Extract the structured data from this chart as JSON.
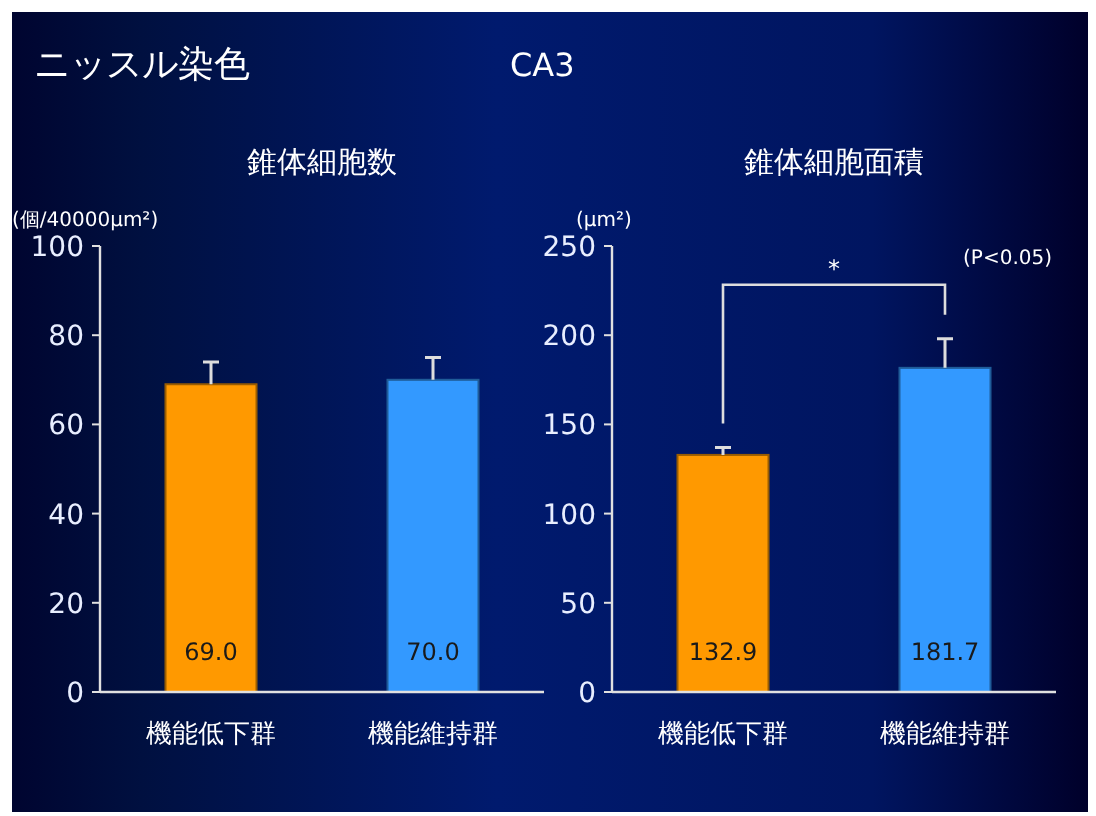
{
  "chart_data": [
    {
      "type": "bar",
      "title": "錐体細胞数",
      "ylabel": "(個/40000μm²)",
      "categories": [
        "機能低下群",
        "機能維持群"
      ],
      "values": [
        69.0,
        70.0
      ],
      "errors": [
        [
          69,
          74
        ],
        [
          70,
          75
        ]
      ],
      "colors": [
        "#ff9900",
        "#3399ff"
      ],
      "value_labels": [
        "69.0",
        "70.0"
      ],
      "ylim": [
        0,
        100
      ],
      "yticks": [
        0,
        20,
        40,
        60,
        80,
        100
      ],
      "grid": false,
      "annotations": [
        "ニッスル染色",
        "CA3"
      ]
    },
    {
      "type": "bar",
      "title": "錐体細胞面積",
      "ylabel": "(μm²)",
      "categories": [
        "機能低下群",
        "機能維持群"
      ],
      "values": [
        132.9,
        181.7
      ],
      "errors": [
        [
          132.9,
          137
        ],
        [
          181.7,
          198
        ]
      ],
      "colors": [
        "#ff9900",
        "#3399ff"
      ],
      "value_labels": [
        "132.9",
        "181.7"
      ],
      "ylim": [
        0,
        250
      ],
      "yticks": [
        0,
        50,
        100,
        150,
        200,
        250
      ],
      "grid": false,
      "annotations": [
        "*",
        "(P<0.05)"
      ]
    }
  ]
}
